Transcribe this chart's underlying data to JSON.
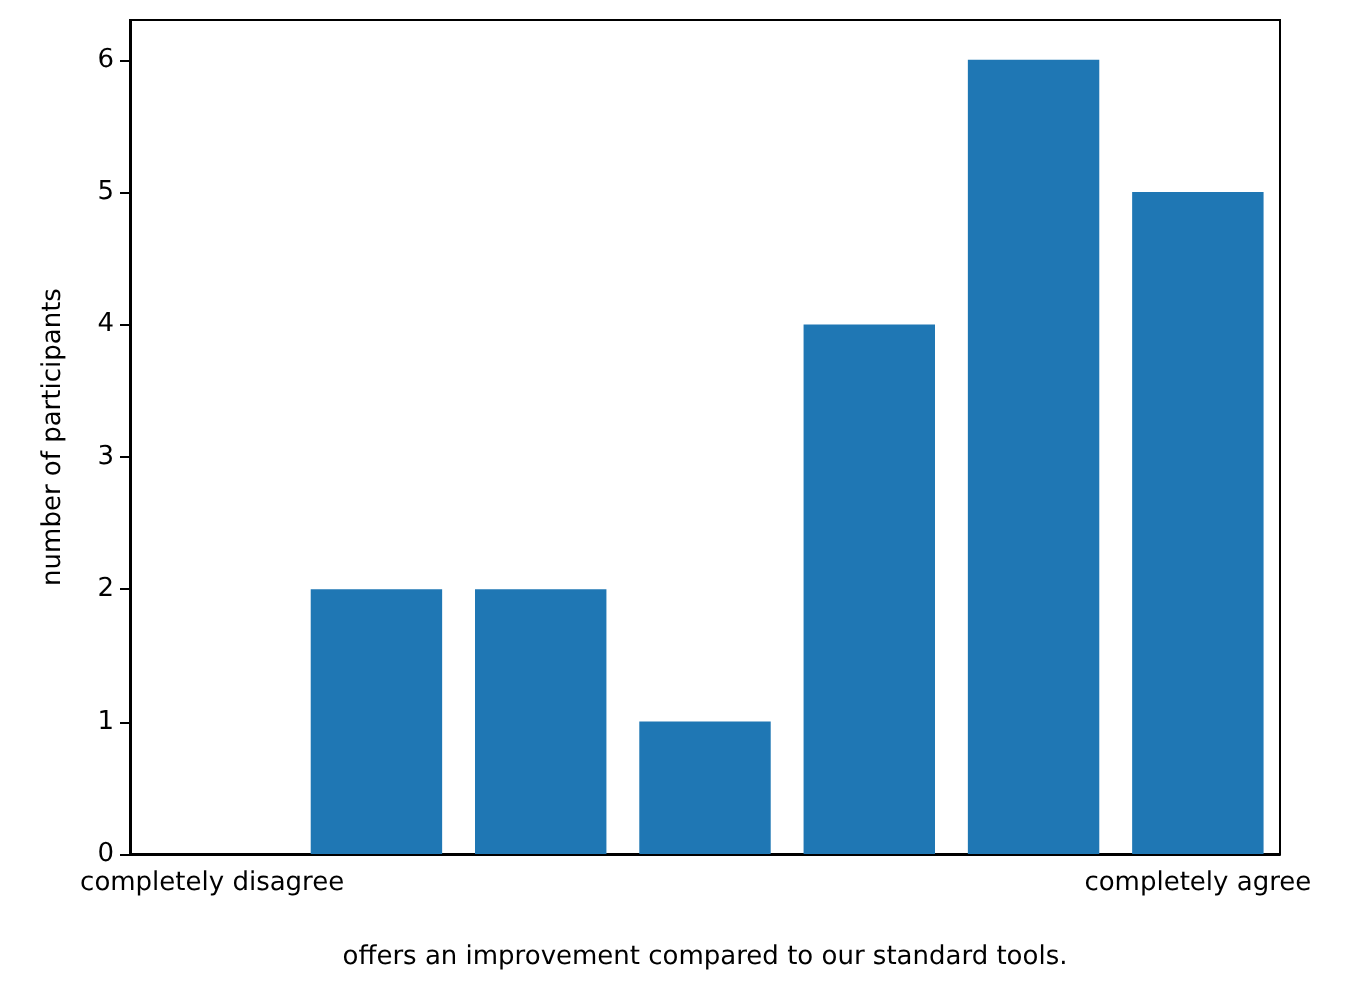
{
  "chart_data": {
    "type": "bar",
    "xlabel": "offers an improvement compared to our standard tools.",
    "ylabel": "number of participants",
    "categories": [
      "completely disagree",
      null,
      null,
      null,
      null,
      null,
      "completely agree"
    ],
    "values": [
      0,
      2,
      2,
      1,
      4,
      6,
      5
    ],
    "color": "#1f77b4",
    "ylim": [
      0,
      6.3
    ],
    "yticks": [
      0,
      1,
      2,
      3,
      4,
      5,
      6
    ],
    "grid": false
  }
}
